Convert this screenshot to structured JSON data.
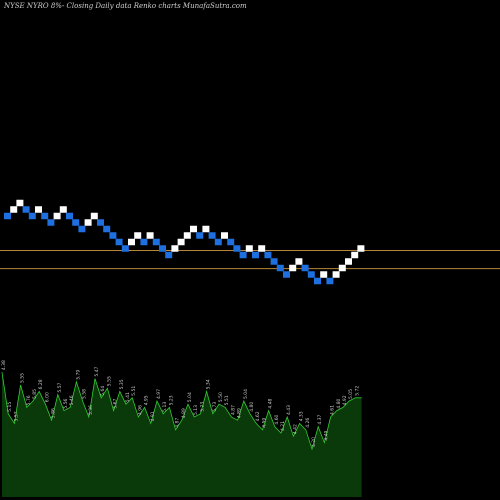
{
  "chart_data": {
    "type": "renko",
    "title": "NYSE NYRO 8%- Closing Daily data Renko charts MunafaSutra.com",
    "colors": {
      "background": "#000000",
      "up_brick": "#ffffff",
      "down_brick": "#1e6fe0",
      "reference_line": "#b8863a",
      "volume_fill": "#0a3a0a",
      "volume_line": "#33cc33",
      "volume_label": "#cccccc"
    },
    "renko": {
      "bricks": [
        {
          "i": 0,
          "level": 0,
          "dir": "down"
        },
        {
          "i": 1,
          "level": 1,
          "dir": "up"
        },
        {
          "i": 2,
          "level": 2,
          "dir": "up"
        },
        {
          "i": 3,
          "level": 1,
          "dir": "down"
        },
        {
          "i": 4,
          "level": 0,
          "dir": "down"
        },
        {
          "i": 5,
          "level": 1,
          "dir": "up"
        },
        {
          "i": 6,
          "level": 0,
          "dir": "down"
        },
        {
          "i": 7,
          "level": -1,
          "dir": "down"
        },
        {
          "i": 8,
          "level": 0,
          "dir": "up"
        },
        {
          "i": 9,
          "level": 1,
          "dir": "up"
        },
        {
          "i": 10,
          "level": 0,
          "dir": "down"
        },
        {
          "i": 11,
          "level": -1,
          "dir": "down"
        },
        {
          "i": 12,
          "level": -2,
          "dir": "down"
        },
        {
          "i": 13,
          "level": -1,
          "dir": "up"
        },
        {
          "i": 14,
          "level": 0,
          "dir": "up"
        },
        {
          "i": 15,
          "level": -1,
          "dir": "down"
        },
        {
          "i": 16,
          "level": -2,
          "dir": "down"
        },
        {
          "i": 17,
          "level": -3,
          "dir": "down"
        },
        {
          "i": 18,
          "level": -4,
          "dir": "down"
        },
        {
          "i": 19,
          "level": -5,
          "dir": "down"
        },
        {
          "i": 20,
          "level": -4,
          "dir": "up"
        },
        {
          "i": 21,
          "level": -3,
          "dir": "up"
        },
        {
          "i": 22,
          "level": -4,
          "dir": "down"
        },
        {
          "i": 23,
          "level": -3,
          "dir": "up"
        },
        {
          "i": 24,
          "level": -4,
          "dir": "down"
        },
        {
          "i": 25,
          "level": -5,
          "dir": "down"
        },
        {
          "i": 26,
          "level": -6,
          "dir": "down"
        },
        {
          "i": 27,
          "level": -5,
          "dir": "up"
        },
        {
          "i": 28,
          "level": -4,
          "dir": "up"
        },
        {
          "i": 29,
          "level": -3,
          "dir": "up"
        },
        {
          "i": 30,
          "level": -2,
          "dir": "up"
        },
        {
          "i": 31,
          "level": -3,
          "dir": "down"
        },
        {
          "i": 32,
          "level": -2,
          "dir": "up"
        },
        {
          "i": 33,
          "level": -3,
          "dir": "down"
        },
        {
          "i": 34,
          "level": -4,
          "dir": "down"
        },
        {
          "i": 35,
          "level": -3,
          "dir": "up"
        },
        {
          "i": 36,
          "level": -4,
          "dir": "down"
        },
        {
          "i": 37,
          "level": -5,
          "dir": "down"
        },
        {
          "i": 38,
          "level": -6,
          "dir": "down"
        },
        {
          "i": 39,
          "level": -5,
          "dir": "up"
        },
        {
          "i": 40,
          "level": -6,
          "dir": "down"
        },
        {
          "i": 41,
          "level": -5,
          "dir": "up"
        },
        {
          "i": 42,
          "level": -6,
          "dir": "down"
        },
        {
          "i": 43,
          "level": -7,
          "dir": "down"
        },
        {
          "i": 44,
          "level": -8,
          "dir": "down"
        },
        {
          "i": 45,
          "level": -9,
          "dir": "down"
        },
        {
          "i": 46,
          "level": -8,
          "dir": "up"
        },
        {
          "i": 47,
          "level": -7,
          "dir": "up"
        },
        {
          "i": 48,
          "level": -8,
          "dir": "down"
        },
        {
          "i": 49,
          "level": -9,
          "dir": "down"
        },
        {
          "i": 50,
          "level": -10,
          "dir": "down"
        },
        {
          "i": 51,
          "level": -9,
          "dir": "up"
        },
        {
          "i": 52,
          "level": -10,
          "dir": "down"
        },
        {
          "i": 53,
          "level": -9,
          "dir": "up"
        },
        {
          "i": 54,
          "level": -8,
          "dir": "up"
        },
        {
          "i": 55,
          "level": -7,
          "dir": "up"
        },
        {
          "i": 56,
          "level": -6,
          "dir": "up"
        },
        {
          "i": 57,
          "level": -5,
          "dir": "up"
        }
      ],
      "reference_lines": [
        -5.3,
        -8.1
      ]
    },
    "volume": {
      "values": [
        78,
        52,
        46,
        70,
        56,
        60,
        66,
        58,
        48,
        64,
        54,
        56,
        72,
        60,
        50,
        74,
        62,
        68,
        54,
        66,
        58,
        62,
        50,
        56,
        46,
        60,
        52,
        56,
        42,
        48,
        58,
        50,
        52,
        66,
        52,
        58,
        56,
        50,
        48,
        60,
        52,
        46,
        42,
        54,
        44,
        40,
        50,
        38,
        46,
        42,
        30,
        44,
        34,
        50,
        54,
        56,
        60,
        62
      ],
      "labels": [
        "4.38",
        "5.15",
        "5.57",
        "5.55",
        "5.76",
        "5.85",
        "6.28",
        "6.00",
        "5.86",
        "5.57",
        "5.56",
        "5.46",
        "5.79",
        "5.58",
        "5.36",
        "5.47",
        "5.64",
        "5.55",
        "5.67",
        "5.35",
        "5.41",
        "5.51",
        "4.96",
        "4.95",
        "4.91",
        "4.97",
        "5.13",
        "5.23",
        "4.87",
        "4.89",
        "5.04",
        "5.13",
        "5.23",
        "5.34",
        "5.73",
        "5.50",
        "5.51",
        "4.87",
        "4.89",
        "5.04",
        "4.80",
        "4.62",
        "4.59",
        "4.48",
        "4.60",
        "4.21",
        "4.43",
        "4.42",
        "4.33",
        "4.26",
        "4.20",
        "4.37",
        "4.49",
        "4.61",
        "4.80",
        "4.92",
        "5.05",
        "5.72"
      ]
    }
  }
}
